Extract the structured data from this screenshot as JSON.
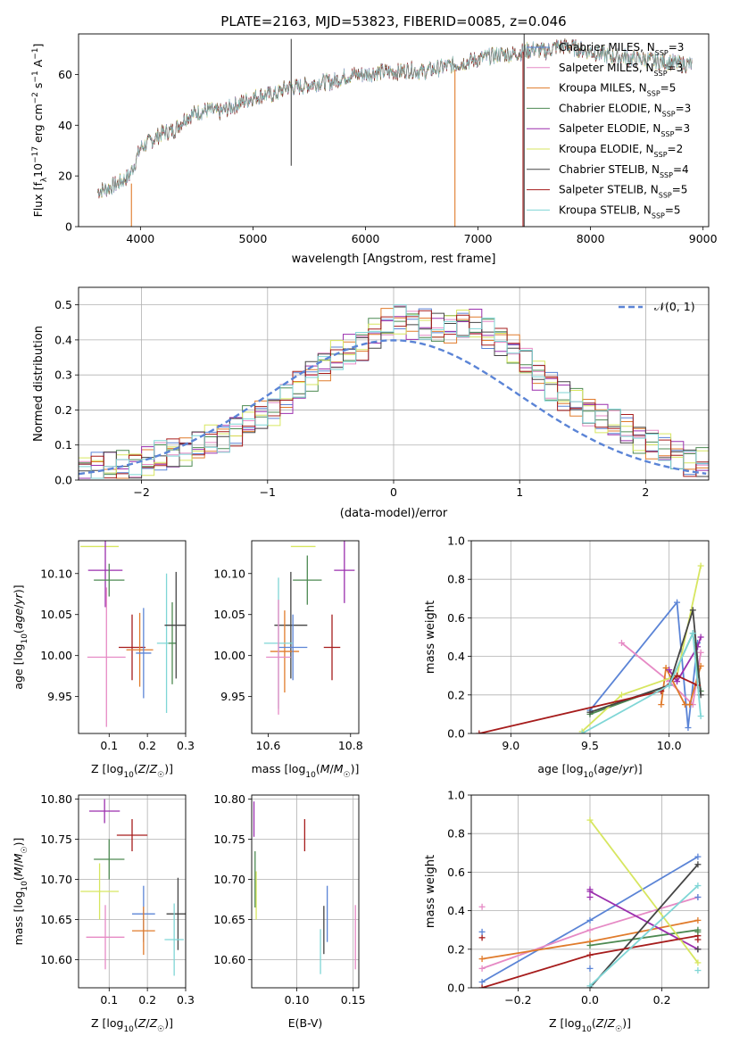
{
  "colors": {
    "c1": "#5b84d6",
    "c2": "#e68ac5",
    "c3": "#e07b2b",
    "c4": "#4d8a52",
    "c5": "#9b2fae",
    "c6": "#d7e660",
    "c7": "#454545",
    "c8": "#a61c1c",
    "c9": "#7fd6d6",
    "dash": "#5b84d6",
    "grid": "#b0b0b0"
  },
  "chart_data": [
    {
      "type": "line",
      "title": "PLATE=2163, MJD=53823, FIBERID=0085, z=0.046",
      "xlabel": "wavelength [Angstrom, rest frame]",
      "ylabel": "Flux [f_λ10^-17 erg cm^-2 s^-1 A^-1]",
      "xlim": [
        3450,
        9050
      ],
      "ylim": [
        0,
        76
      ],
      "xticks": [
        4000,
        5000,
        6000,
        7000,
        8000,
        9000
      ],
      "yticks": [
        0,
        20,
        40,
        60
      ],
      "grid": false,
      "legend_position": "right",
      "series": [
        {
          "name": "Chabrier MILES",
          "nssp": "3",
          "color": "c1"
        },
        {
          "name": "Salpeter MILES",
          "nssp": "3",
          "color": "c2"
        },
        {
          "name": "Kroupa MILES",
          "nssp": "5",
          "color": "c3"
        },
        {
          "name": "Chabrier ELODIE",
          "nssp": "3",
          "color": "c4"
        },
        {
          "name": "Salpeter ELODIE",
          "nssp": "3",
          "color": "c5"
        },
        {
          "name": "Kroupa ELODIE",
          "nssp": "2",
          "color": "c6"
        },
        {
          "name": "Chabrier STELIB",
          "nssp": "4",
          "color": "c7"
        },
        {
          "name": "Salpeter STELIB",
          "nssp": "5",
          "color": "c8"
        },
        {
          "name": "Kroupa STELIB",
          "nssp": "5",
          "color": "c9"
        }
      ],
      "continuum": {
        "x": [
          3620,
          3700,
          3800,
          3900,
          3950,
          4000,
          4100,
          4200,
          4300,
          4400,
          4500,
          4600,
          4700,
          4800,
          4900,
          5000,
          5100,
          5200,
          5300,
          5400,
          5500,
          5600,
          5700,
          5800,
          5900,
          6000,
          6100,
          6200,
          6300,
          6400,
          6500,
          6600,
          6700,
          6800,
          6900,
          7000,
          7100,
          7200,
          7300,
          7400,
          7500,
          7600,
          7700,
          7800,
          7900,
          8000,
          8100,
          8200,
          8300,
          8400,
          8500,
          8600,
          8700,
          8800,
          8900
        ],
        "y": [
          14,
          15,
          17,
          20,
          25,
          31,
          34,
          37,
          38,
          43,
          45,
          46,
          45,
          47,
          49,
          51,
          52,
          52,
          55,
          55,
          56,
          57,
          57,
          59,
          60,
          60,
          61,
          61,
          61,
          62,
          61,
          62,
          63,
          64,
          65,
          66,
          67,
          68,
          68,
          69,
          70,
          69,
          71,
          71,
          70,
          69,
          68,
          67,
          67,
          66,
          66,
          65,
          65,
          64,
          64
        ]
      },
      "spikes": [
        {
          "x": 5340,
          "y0": 24,
          "y1": 74,
          "color": "c7"
        },
        {
          "x": 3920,
          "y0": 0,
          "y1": 17,
          "color": "c3"
        },
        {
          "x": 6795,
          "y0": 0,
          "y1": 62,
          "color": "c3"
        },
        {
          "x": 7400,
          "y0": 0,
          "y1": 69,
          "color": "c8"
        },
        {
          "x": 7410,
          "y0": 0,
          "y1": 76,
          "color": "c7"
        }
      ]
    },
    {
      "type": "bar",
      "xlabel": "(data-model)/error",
      "ylabel": "Normed distribution",
      "xlim": [
        -2.5,
        2.5
      ],
      "ylim": [
        0,
        0.55
      ],
      "xticks": [
        -2,
        -1,
        0,
        1,
        2
      ],
      "xticklabels": [
        "−2",
        "−1",
        "0",
        "1",
        "2"
      ],
      "yticks": [
        0.0,
        0.1,
        0.2,
        0.3,
        0.4,
        0.5
      ],
      "grid": true,
      "legend_position": "top-right",
      "reference": {
        "name": "𝒩(0, 1)",
        "mean": 0,
        "sd": 1
      },
      "bins": {
        "start": -2.5,
        "width": 0.1
      },
      "base_hist": [
        0.03,
        0.035,
        0.04,
        0.045,
        0.05,
        0.055,
        0.065,
        0.075,
        0.085,
        0.095,
        0.11,
        0.125,
        0.145,
        0.165,
        0.185,
        0.205,
        0.23,
        0.26,
        0.3,
        0.33,
        0.35,
        0.37,
        0.39,
        0.42,
        0.44,
        0.46,
        0.45,
        0.44,
        0.43,
        0.44,
        0.45,
        0.44,
        0.42,
        0.4,
        0.37,
        0.33,
        0.3,
        0.27,
        0.24,
        0.22,
        0.2,
        0.18,
        0.16,
        0.14,
        0.12,
        0.1,
        0.085,
        0.07,
        0.06,
        0.05,
        0.04,
        0.035,
        0.03,
        0.025,
        0.022,
        0.02,
        0.017,
        0.015,
        0.012,
        0.01
      ]
    },
    {
      "type": "scatter",
      "panel": "age-vs-Z",
      "xlabel": "Z [log10(Z/Z☉)]",
      "ylabel": "age  [log10(age/yr)]",
      "xlim": [
        0.02,
        0.3
      ],
      "ylim": [
        9.905,
        10.14
      ],
      "xticks": [
        0.1,
        0.2,
        0.3
      ],
      "yticks": [
        9.95,
        10.0,
        10.05,
        10.1
      ],
      "grid": false,
      "points": [
        {
          "c": "c6",
          "x": 0.075,
          "xe": 0.05,
          "y": 10.133,
          "ye": 0.0
        },
        {
          "c": "c5",
          "x": 0.09,
          "xe": 0.045,
          "y": 10.104,
          "ye": 0.045
        },
        {
          "c": "c4",
          "x": 0.1,
          "xe": 0.04,
          "y": 10.092,
          "ye": 0.02
        },
        {
          "c": "c2",
          "x": 0.093,
          "xe": 0.05,
          "y": 9.998,
          "ye": 0.085
        },
        {
          "c": "c8",
          "x": 0.16,
          "xe": 0.035,
          "y": 10.01,
          "ye": 0.04
        },
        {
          "c": "c3",
          "x": 0.18,
          "xe": 0.035,
          "y": 10.007,
          "ye": 0.045
        },
        {
          "c": "c1",
          "x": 0.19,
          "xe": 0.02,
          "y": 10.003,
          "ye": 0.055
        },
        {
          "c": "c9",
          "x": 0.25,
          "xe": 0.025,
          "y": 10.015,
          "ye": 0.085
        },
        {
          "c": "c4",
          "x": 0.265,
          "xe": 0.01,
          "y": 10.015,
          "ye": 0.05
        },
        {
          "c": "c7",
          "x": 0.275,
          "xe": 0.03,
          "y": 10.037,
          "ye": 0.065
        }
      ]
    },
    {
      "type": "scatter",
      "panel": "age-vs-mass",
      "xlabel": "mass [log10(M/M☉)]",
      "xlim": [
        10.56,
        10.82
      ],
      "ylim": [
        9.905,
        10.14
      ],
      "xticks": [
        10.6,
        10.8
      ],
      "yticks": [
        9.95,
        10.0,
        10.05,
        10.1
      ],
      "grid": false,
      "points": [
        {
          "c": "c6",
          "x": 10.685,
          "xe": 0.03,
          "y": 10.133,
          "ye": 0.0
        },
        {
          "c": "c5",
          "x": 10.785,
          "xe": 0.025,
          "y": 10.104,
          "ye": 0.04
        },
        {
          "c": "c4",
          "x": 10.695,
          "xe": 0.035,
          "y": 10.092,
          "ye": 0.03
        },
        {
          "c": "c7",
          "x": 10.655,
          "xe": 0.04,
          "y": 10.037,
          "ye": 0.065
        },
        {
          "c": "c3",
          "x": 10.64,
          "xe": 0.035,
          "y": 10.005,
          "ye": 0.05
        },
        {
          "c": "c1",
          "x": 10.66,
          "xe": 0.035,
          "y": 10.01,
          "ye": 0.04
        },
        {
          "c": "c9",
          "x": 10.625,
          "xe": 0.035,
          "y": 10.015,
          "ye": 0.08
        },
        {
          "c": "c2",
          "x": 10.625,
          "xe": 0.03,
          "y": 9.998,
          "ye": 0.07
        },
        {
          "c": "c8",
          "x": 10.755,
          "xe": 0.02,
          "y": 10.01,
          "ye": 0.04
        }
      ]
    },
    {
      "type": "line",
      "panel": "mass-weight-vs-age",
      "xlabel": "age  [log10(age/yr)]",
      "ylabel": "mass weight",
      "xlim": [
        8.75,
        10.25
      ],
      "ylim": [
        0,
        1.0
      ],
      "xticks": [
        9.0,
        9.5,
        10.0
      ],
      "yticks": [
        0.0,
        0.2,
        0.4,
        0.6,
        0.8,
        1.0
      ],
      "grid": true,
      "series": [
        {
          "c": "c1",
          "pts": [
            [
              9.5,
              0.12
            ],
            [
              10.05,
              0.68
            ],
            [
              10.12,
              0.03
            ],
            [
              10.18,
              0.47
            ]
          ]
        },
        {
          "c": "c2",
          "pts": [
            [
              9.7,
              0.47
            ],
            [
              10.0,
              0.27
            ],
            [
              10.15,
              0.15
            ],
            [
              10.2,
              0.42
            ]
          ]
        },
        {
          "c": "c3",
          "pts": [
            [
              9.95,
              0.15
            ],
            [
              9.98,
              0.34
            ],
            [
              10.1,
              0.15
            ],
            [
              10.13,
              0.15
            ],
            [
              10.2,
              0.35
            ]
          ]
        },
        {
          "c": "c4",
          "pts": [
            [
              9.5,
              0.1
            ],
            [
              10.0,
              0.25
            ],
            [
              10.15,
              0.52
            ],
            [
              10.2,
              0.22
            ]
          ]
        },
        {
          "c": "c5",
          "pts": [
            [
              10.0,
              0.33
            ],
            [
              10.05,
              0.27
            ],
            [
              10.18,
              0.45
            ],
            [
              10.2,
              0.5
            ]
          ]
        },
        {
          "c": "c6",
          "pts": [
            [
              9.45,
              0.01
            ],
            [
              9.7,
              0.2
            ],
            [
              10.05,
              0.3
            ],
            [
              10.2,
              0.87
            ]
          ]
        },
        {
          "c": "c7",
          "pts": [
            [
              9.5,
              0.11
            ],
            [
              10.0,
              0.25
            ],
            [
              10.15,
              0.64
            ],
            [
              10.2,
              0.2
            ]
          ]
        },
        {
          "c": "c8",
          "pts": [
            [
              8.8,
              0.0
            ],
            [
              9.95,
              0.22
            ],
            [
              10.05,
              0.3
            ],
            [
              10.18,
              0.25
            ]
          ]
        },
        {
          "c": "c9",
          "pts": [
            [
              9.45,
              0.0
            ],
            [
              10.0,
              0.25
            ],
            [
              10.15,
              0.52
            ],
            [
              10.2,
              0.09
            ]
          ]
        }
      ]
    },
    {
      "type": "scatter",
      "panel": "mass-vs-Z",
      "xlabel": "Z [log10(Z/Z☉)]",
      "ylabel": "mass [log10(M/M☉)]",
      "xlim": [
        0.02,
        0.3
      ],
      "ylim": [
        10.565,
        10.805
      ],
      "xticks": [
        0.1,
        0.2,
        0.3
      ],
      "yticks": [
        10.6,
        10.65,
        10.7,
        10.75,
        10.8
      ],
      "grid": true,
      "points": [
        {
          "c": "c5",
          "x": 0.088,
          "xe": 0.04,
          "y": 10.785,
          "ye": 0.015
        },
        {
          "c": "c8",
          "x": 0.16,
          "xe": 0.04,
          "y": 10.755,
          "ye": 0.02
        },
        {
          "c": "c4",
          "x": 0.1,
          "xe": 0.04,
          "y": 10.725,
          "ye": 0.025
        },
        {
          "c": "c6",
          "x": 0.075,
          "xe": 0.05,
          "y": 10.685,
          "ye": 0.035
        },
        {
          "c": "c2",
          "x": 0.09,
          "xe": 0.05,
          "y": 10.628,
          "ye": 0.04
        },
        {
          "c": "c1",
          "x": 0.19,
          "xe": 0.03,
          "y": 10.657,
          "ye": 0.035
        },
        {
          "c": "c3",
          "x": 0.19,
          "xe": 0.03,
          "y": 10.636,
          "ye": 0.03
        },
        {
          "c": "c7",
          "x": 0.28,
          "xe": 0.03,
          "y": 10.657,
          "ye": 0.045
        },
        {
          "c": "c9",
          "x": 0.27,
          "xe": 0.025,
          "y": 10.625,
          "ye": 0.045
        }
      ]
    },
    {
      "type": "scatter",
      "panel": "mass-vs-EBV",
      "xlabel": "E(B-V)",
      "xlim": [
        0.06,
        0.155
      ],
      "ylim": [
        10.565,
        10.805
      ],
      "xticks": [
        0.1,
        0.15
      ],
      "yticks": [
        10.6,
        10.65,
        10.7,
        10.75,
        10.8
      ],
      "grid": true,
      "points": [
        {
          "c": "c5",
          "x": 0.062,
          "y": 10.775,
          "ye": 0.022
        },
        {
          "c": "c4",
          "x": 0.063,
          "y": 10.7,
          "ye": 0.035
        },
        {
          "c": "c6",
          "x": 0.064,
          "y": 10.68,
          "ye": 0.03
        },
        {
          "c": "c8",
          "x": 0.107,
          "y": 10.755,
          "ye": 0.02
        },
        {
          "c": "c1",
          "x": 0.127,
          "y": 10.657,
          "ye": 0.035
        },
        {
          "c": "c7",
          "x": 0.124,
          "y": 10.637,
          "ye": 0.03
        },
        {
          "c": "c9",
          "x": 0.121,
          "y": 10.61,
          "ye": 0.028
        },
        {
          "c": "c2",
          "x": 0.152,
          "y": 10.628,
          "ye": 0.04
        }
      ]
    },
    {
      "type": "line",
      "panel": "mass-weight-vs-Z",
      "xlabel": "Z [log10(Z/Z☉)]",
      "ylabel": "mass weight",
      "xlim": [
        -0.33,
        0.33
      ],
      "ylim": [
        0,
        1.0
      ],
      "xticks": [
        -0.2,
        0.0,
        0.2
      ],
      "xticklabels": [
        "−0.2",
        "0.0",
        "0.2"
      ],
      "yticks": [
        0.0,
        0.2,
        0.4,
        0.6,
        0.8,
        1.0
      ],
      "grid": true,
      "series": [
        {
          "c": "c1",
          "pts": [
            [
              -0.3,
              0.03
            ],
            [
              0.0,
              0.35
            ],
            [
              0.3,
              0.68
            ]
          ]
        },
        {
          "c": "c2",
          "pts": [
            [
              -0.3,
              0.1
            ],
            [
              0.0,
              0.3
            ],
            [
              0.3,
              0.47
            ]
          ]
        },
        {
          "c": "c3",
          "pts": [
            [
              -0.3,
              0.15
            ],
            [
              0.0,
              0.24
            ],
            [
              0.3,
              0.35
            ]
          ]
        },
        {
          "c": "c4",
          "pts": [
            [
              0.0,
              0.22
            ],
            [
              0.3,
              0.3
            ]
          ]
        },
        {
          "c": "c5",
          "pts": [
            [
              0.0,
              0.5
            ],
            [
              0.3,
              0.2
            ]
          ]
        },
        {
          "c": "c6",
          "pts": [
            [
              0.0,
              0.87
            ],
            [
              0.3,
              0.13
            ]
          ]
        },
        {
          "c": "c7",
          "pts": [
            [
              0.0,
              0.0
            ],
            [
              0.3,
              0.64
            ]
          ]
        },
        {
          "c": "c8",
          "pts": [
            [
              -0.3,
              0.0
            ],
            [
              0.0,
              0.17
            ],
            [
              0.3,
              0.27
            ]
          ]
        },
        {
          "c": "c9",
          "pts": [
            [
              0.0,
              0.01
            ],
            [
              0.3,
              0.53
            ]
          ]
        }
      ],
      "markers": [
        {
          "c": "c2",
          "x": -0.3,
          "y": 0.42
        },
        {
          "c": "c8",
          "x": -0.3,
          "y": 0.26
        },
        {
          "c": "c1",
          "x": -0.3,
          "y": 0.29
        },
        {
          "c": "c5",
          "x": 0.0,
          "y": 0.51
        },
        {
          "c": "c5",
          "x": 0.0,
          "y": 0.47
        },
        {
          "c": "c1",
          "x": 0.0,
          "y": 0.1
        },
        {
          "c": "c9",
          "x": 0.3,
          "y": 0.09
        },
        {
          "c": "c8",
          "x": 0.3,
          "y": 0.25
        },
        {
          "c": "c4",
          "x": 0.3,
          "y": 0.29
        },
        {
          "c": "c7",
          "x": 0.3,
          "y": 0.2
        },
        {
          "c": "c1",
          "x": 0.3,
          "y": 0.47
        }
      ]
    }
  ]
}
